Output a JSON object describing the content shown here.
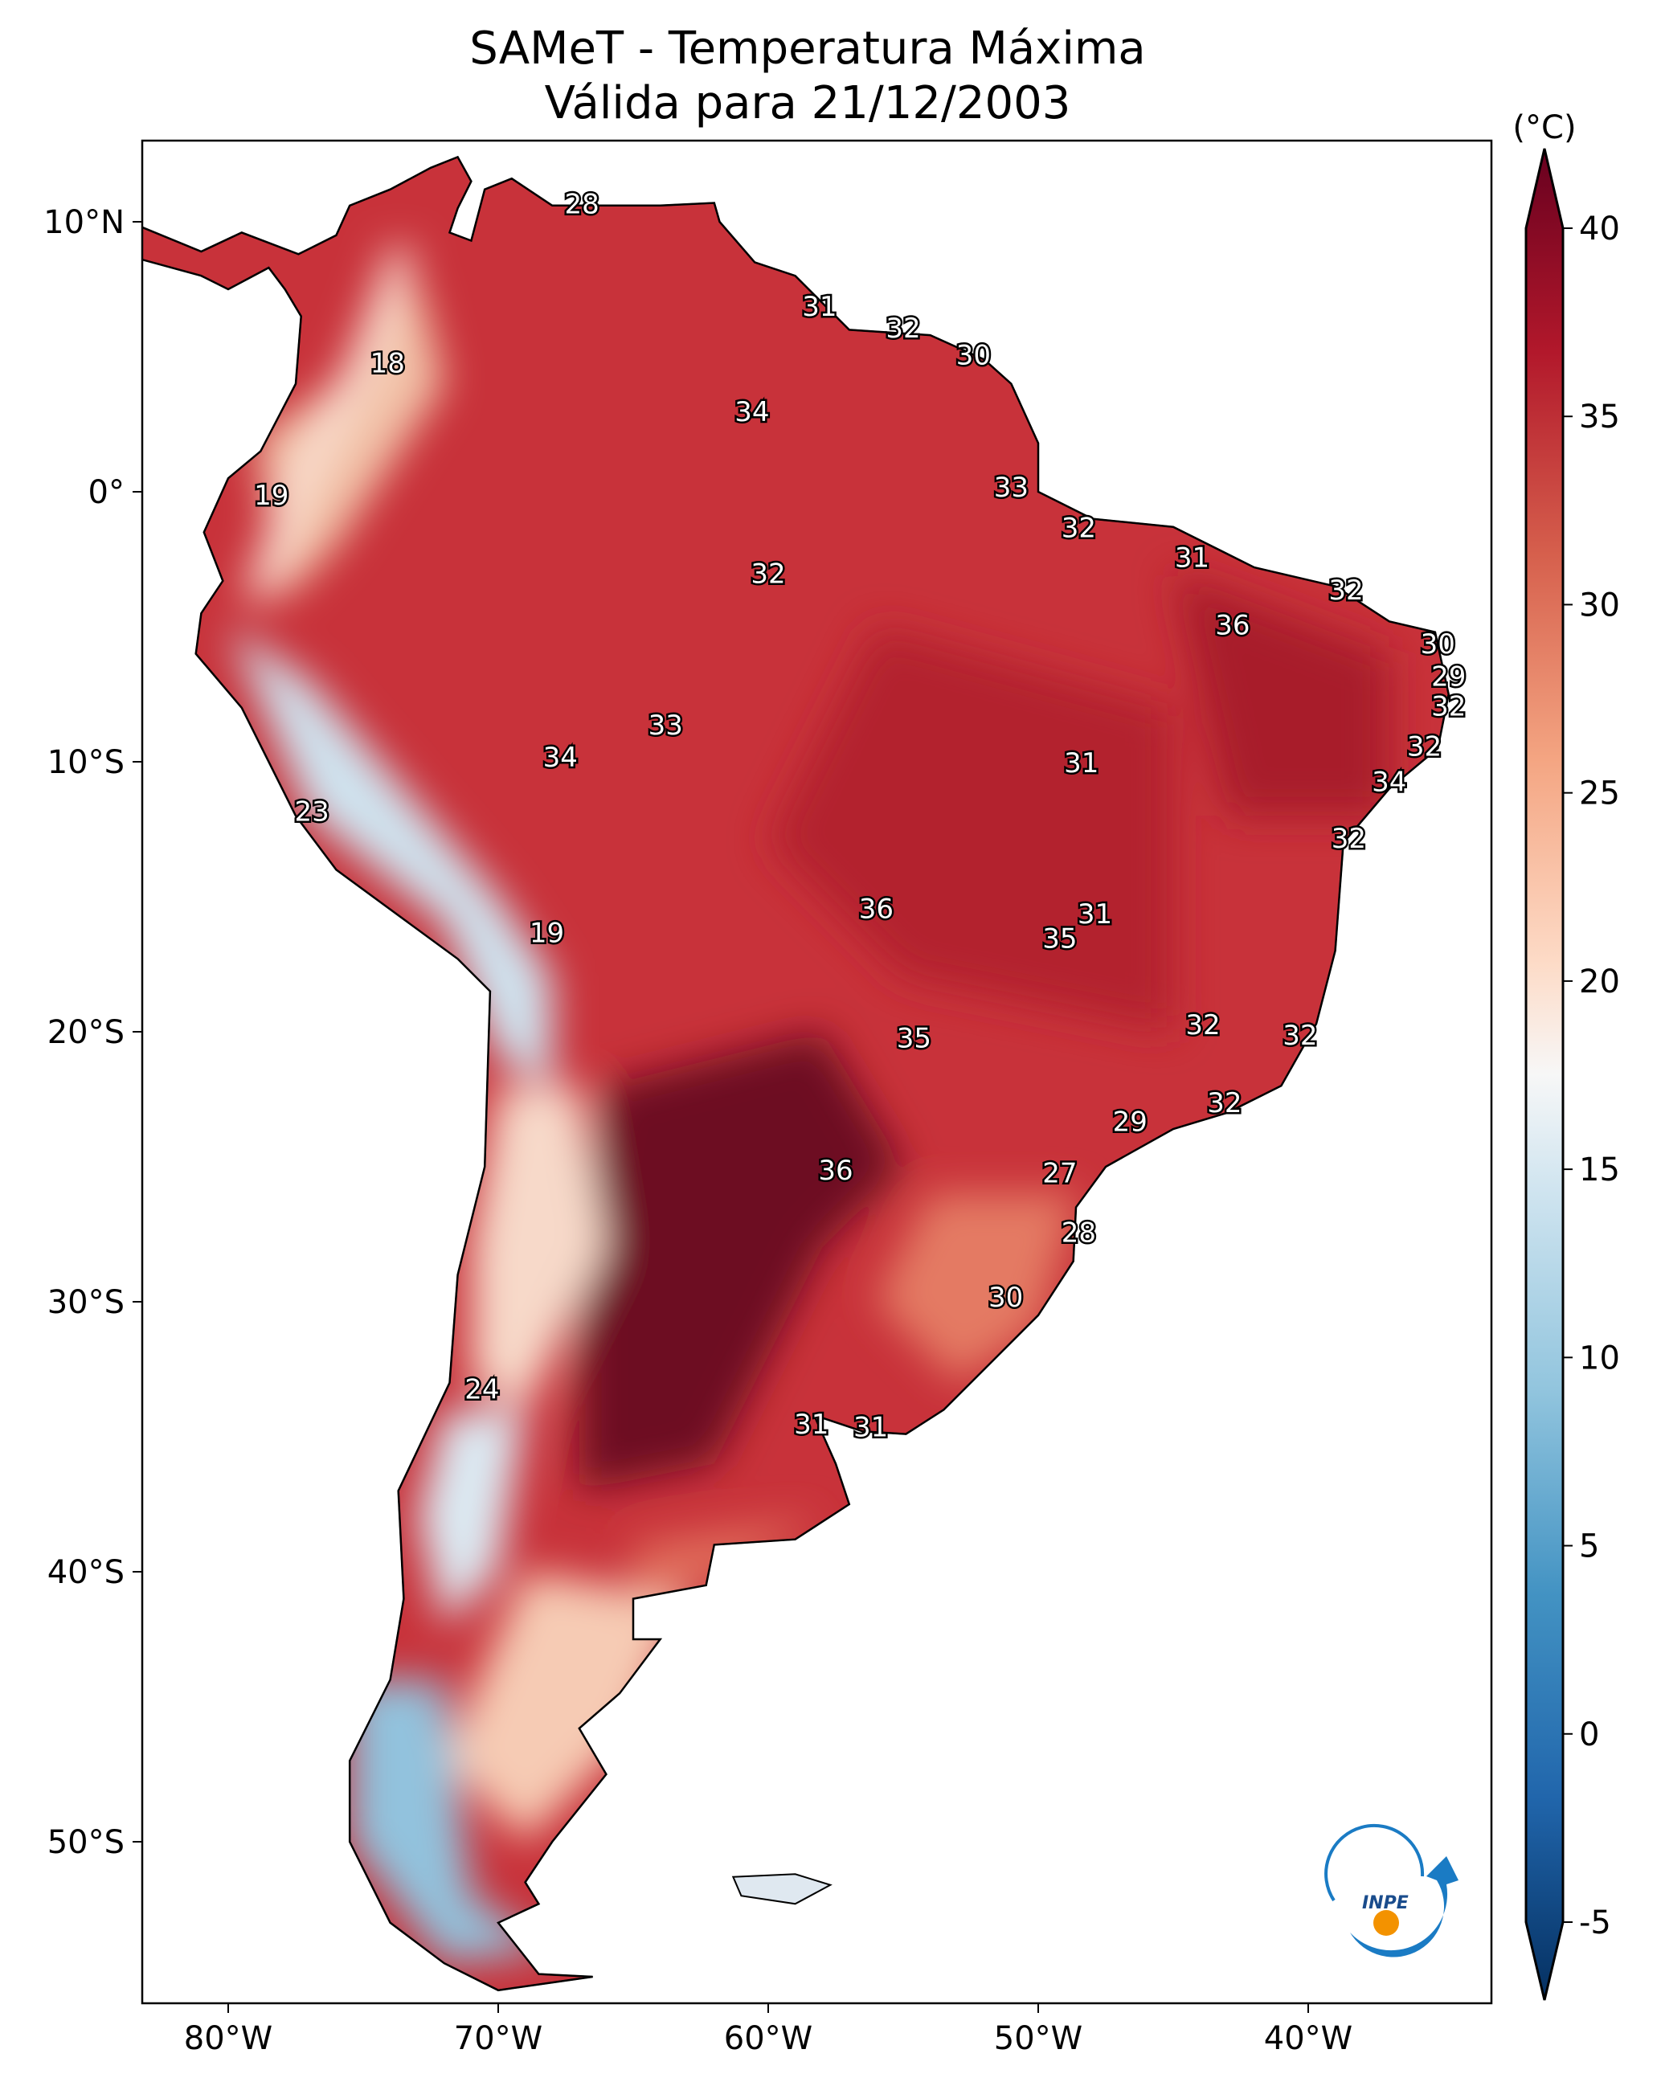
{
  "title": {
    "line1": "SAMeT - Temperatura Máxima",
    "line2": "Válida para 21/12/2003"
  },
  "colorbar": {
    "unit": "(°C)",
    "ticks": [
      "40",
      "35",
      "30",
      "25",
      "20",
      "15",
      "10",
      "5",
      "0",
      "-5"
    ],
    "range": [
      -5,
      40
    ],
    "extend": "both",
    "colormap": "RdBu_r"
  },
  "axes": {
    "lon_ticks": [
      "80°W",
      "70°W",
      "60°W",
      "50°W",
      "40°W"
    ],
    "lat_ticks": [
      "10°N",
      "0°",
      "10°S",
      "20°S",
      "30°S",
      "40°S",
      "50°S"
    ],
    "lon_range": [
      -83.2,
      -33.2
    ],
    "lat_range": [
      -56,
      13
    ]
  },
  "logo": {
    "text": "INPE",
    "colors": {
      "blue": "#1a7bc4",
      "orange": "#f39200"
    }
  },
  "stations": [
    {
      "v": "28",
      "lon": -66.9,
      "lat": 10.6
    },
    {
      "v": "31",
      "lon": -58.1,
      "lat": 6.8
    },
    {
      "v": "32",
      "lon": -55.0,
      "lat": 6.0
    },
    {
      "v": "30",
      "lon": -52.4,
      "lat": 5.0
    },
    {
      "v": "18",
      "lon": -74.1,
      "lat": 4.7
    },
    {
      "v": "34",
      "lon": -60.6,
      "lat": 2.9
    },
    {
      "v": "19",
      "lon": -78.4,
      "lat": -0.2
    },
    {
      "v": "33",
      "lon": -51.0,
      "lat": 0.1
    },
    {
      "v": "32",
      "lon": -48.5,
      "lat": -1.4
    },
    {
      "v": "31",
      "lon": -44.3,
      "lat": -2.5
    },
    {
      "v": "32",
      "lon": -60.0,
      "lat": -3.1
    },
    {
      "v": "32",
      "lon": -38.6,
      "lat": -3.7
    },
    {
      "v": "36",
      "lon": -42.8,
      "lat": -5.0
    },
    {
      "v": "30",
      "lon": -35.2,
      "lat": -5.7
    },
    {
      "v": "29",
      "lon": -34.8,
      "lat": -6.9
    },
    {
      "v": "32",
      "lon": -34.8,
      "lat": -8.0
    },
    {
      "v": "33",
      "lon": -63.8,
      "lat": -8.7
    },
    {
      "v": "32",
      "lon": -35.7,
      "lat": -9.5
    },
    {
      "v": "34",
      "lon": -67.7,
      "lat": -9.9
    },
    {
      "v": "31",
      "lon": -48.4,
      "lat": -10.1
    },
    {
      "v": "34",
      "lon": -37.0,
      "lat": -10.8
    },
    {
      "v": "23",
      "lon": -76.9,
      "lat": -11.9
    },
    {
      "v": "32",
      "lon": -38.5,
      "lat": -12.9
    },
    {
      "v": "36",
      "lon": -56.0,
      "lat": -15.5
    },
    {
      "v": "31",
      "lon": -47.9,
      "lat": -15.7
    },
    {
      "v": "19",
      "lon": -68.2,
      "lat": -16.4
    },
    {
      "v": "35",
      "lon": -49.2,
      "lat": -16.6
    },
    {
      "v": "32",
      "lon": -43.9,
      "lat": -19.8
    },
    {
      "v": "32",
      "lon": -40.3,
      "lat": -20.2
    },
    {
      "v": "35",
      "lon": -54.6,
      "lat": -20.3
    },
    {
      "v": "32",
      "lon": -43.1,
      "lat": -22.7
    },
    {
      "v": "29",
      "lon": -46.6,
      "lat": -23.4
    },
    {
      "v": "36",
      "lon": -57.5,
      "lat": -25.2
    },
    {
      "v": "27",
      "lon": -49.2,
      "lat": -25.3
    },
    {
      "v": "28",
      "lon": -48.5,
      "lat": -27.5
    },
    {
      "v": "30",
      "lon": -51.2,
      "lat": -29.9
    },
    {
      "v": "24",
      "lon": -70.6,
      "lat": -33.3
    },
    {
      "v": "31",
      "lon": -58.4,
      "lat": -34.6
    },
    {
      "v": "31",
      "lon": -56.2,
      "lat": -34.7
    }
  ]
}
